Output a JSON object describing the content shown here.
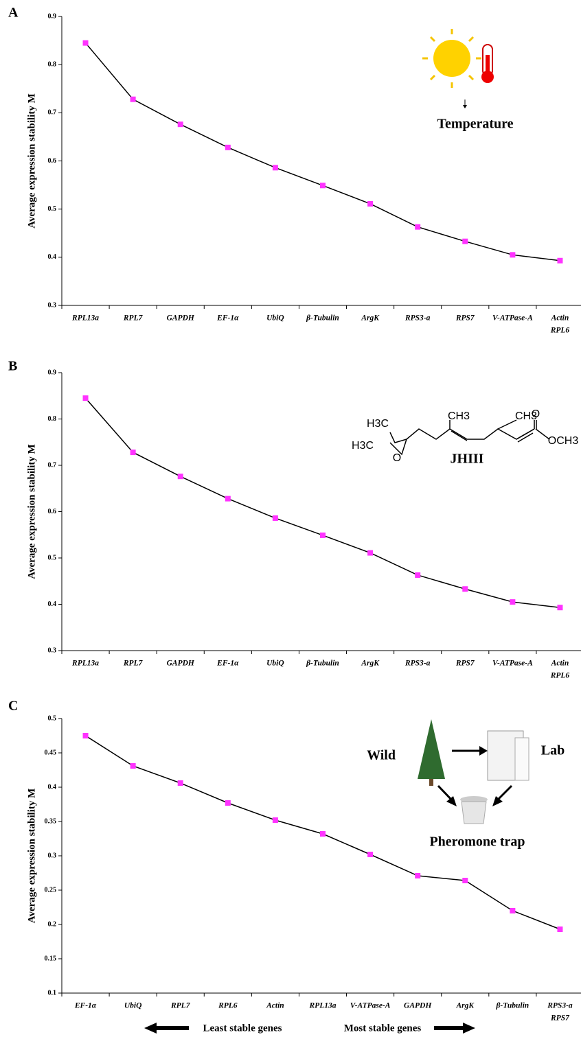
{
  "chart_data": [
    {
      "type": "line",
      "panel_label": "A",
      "y_label": "Average expression stability M",
      "annotations": [
        "Temperature"
      ],
      "categories": [
        "RPL13a",
        "RPL7",
        "GAPDH",
        "EF-1α",
        "UbiQ",
        "β-Tubulin",
        "ArgK",
        "RPS3-a",
        "RPS7",
        "V-ATPase-A",
        [
          "Actin",
          "RPL6"
        ]
      ],
      "values": [
        0.845,
        0.728,
        0.676,
        0.628,
        0.586,
        0.549,
        0.511,
        0.463,
        0.433,
        0.405,
        0.393
      ],
      "color": "#ff33ff",
      "line_color": "#000000",
      "ylim": [
        0.3,
        0.9
      ],
      "yticks": [
        0.3,
        0.4,
        0.5,
        0.6,
        0.7,
        0.8,
        0.9
      ]
    },
    {
      "type": "line",
      "panel_label": "B",
      "y_label": "Average expression stability M",
      "annotations": [
        "JHIII"
      ],
      "structure_labels": [
        "H3C",
        "H3C",
        "CH3",
        "CH3",
        "O",
        "O",
        "OCH3"
      ],
      "categories": [
        "RPL13a",
        "RPL7",
        "GAPDH",
        "EF-1α",
        "UbiQ",
        "β-Tubulin",
        "ArgK",
        "RPS3-a",
        "RPS7",
        "V-ATPase-A",
        [
          "Actin",
          "RPL6"
        ]
      ],
      "values": [
        0.845,
        0.728,
        0.676,
        0.628,
        0.586,
        0.549,
        0.511,
        0.463,
        0.433,
        0.405,
        0.393
      ],
      "color": "#ff33ff",
      "line_color": "#000000",
      "ylim": [
        0.3,
        0.9
      ],
      "yticks": [
        0.3,
        0.4,
        0.5,
        0.6,
        0.7,
        0.8,
        0.9
      ]
    },
    {
      "type": "line",
      "panel_label": "C",
      "y_label": "Average expression stability M",
      "annotations": [
        "Wild",
        "Lab",
        "Pheromone trap"
      ],
      "categories": [
        "EF-1α",
        "UbiQ",
        "RPL7",
        "RPL6",
        "Actin",
        "RPL13a",
        "V-ATPase-A",
        "GAPDH",
        "ArgK",
        "β-Tubulin",
        [
          "RPS3-a",
          "RPS7"
        ]
      ],
      "values": [
        0.475,
        0.431,
        0.406,
        0.377,
        0.352,
        0.332,
        0.302,
        0.271,
        0.264,
        0.22,
        0.193
      ],
      "color": "#ff33ff",
      "line_color": "#000000",
      "ylim": [
        0.1,
        0.5
      ],
      "yticks": [
        0.1,
        0.15,
        0.2,
        0.25,
        0.3,
        0.35,
        0.4,
        0.45,
        0.5
      ],
      "footer_labels": [
        "Least stable genes",
        "Most stable genes"
      ]
    }
  ]
}
